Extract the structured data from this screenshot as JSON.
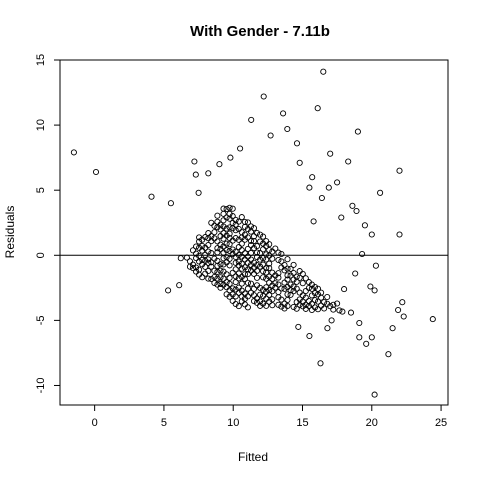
{
  "chart_data": {
    "type": "scatter",
    "title": "With Gender - 7.11b",
    "xlabel": "Fitted",
    "ylabel": "Residuals",
    "xlim": [
      -2.5,
      25.5
    ],
    "ylim": [
      -11.5,
      15.0
    ],
    "x_ticks": [
      0,
      5,
      10,
      15,
      20,
      25
    ],
    "y_ticks": [
      -10,
      -5,
      0,
      5,
      10,
      15
    ],
    "x_tick_labels": [
      "0",
      "5",
      "10",
      "15",
      "20",
      "25"
    ],
    "y_tick_labels": [
      "-10",
      "-5",
      "0",
      "5",
      "10",
      "15"
    ],
    "reference_line": {
      "y": 0
    },
    "marker": "open-circle",
    "grid": false,
    "legend": "none",
    "cluster": {
      "description": "dense band of points along diagonal stripes",
      "x_range": [
        6.0,
        19.5
      ],
      "y_range": [
        -4.5,
        8.5
      ]
    },
    "outliers": [
      {
        "x": -1.5,
        "y": 7.9
      },
      {
        "x": 0.1,
        "y": 6.4
      },
      {
        "x": 4.1,
        "y": 4.5
      },
      {
        "x": 5.5,
        "y": 4.0
      },
      {
        "x": 5.3,
        "y": -2.7
      },
      {
        "x": 6.1,
        "y": -2.3
      },
      {
        "x": 7.2,
        "y": 7.2
      },
      {
        "x": 7.3,
        "y": 6.2
      },
      {
        "x": 9.0,
        "y": 7.0
      },
      {
        "x": 11.3,
        "y": 10.4
      },
      {
        "x": 12.2,
        "y": 12.2
      },
      {
        "x": 13.6,
        "y": 10.9
      },
      {
        "x": 16.1,
        "y": 11.3
      },
      {
        "x": 16.5,
        "y": 14.1
      },
      {
        "x": 16.3,
        "y": -8.3
      },
      {
        "x": 17.0,
        "y": 7.8
      },
      {
        "x": 17.5,
        "y": 5.6
      },
      {
        "x": 18.3,
        "y": 7.2
      },
      {
        "x": 19.0,
        "y": 9.5
      },
      {
        "x": 18.6,
        "y": 3.8
      },
      {
        "x": 18.9,
        "y": 3.4
      },
      {
        "x": 19.5,
        "y": 2.3
      },
      {
        "x": 20.0,
        "y": 1.6
      },
      {
        "x": 20.6,
        "y": 4.8
      },
      {
        "x": 22.0,
        "y": 6.5
      },
      {
        "x": 22.0,
        "y": 1.6
      },
      {
        "x": 19.3,
        "y": 0.1
      },
      {
        "x": 20.3,
        "y": -0.8
      },
      {
        "x": 19.9,
        "y": -2.4
      },
      {
        "x": 20.2,
        "y": -2.7
      },
      {
        "x": 19.1,
        "y": -5.2
      },
      {
        "x": 19.1,
        "y": -6.3
      },
      {
        "x": 19.6,
        "y": -6.8
      },
      {
        "x": 20.0,
        "y": -6.3
      },
      {
        "x": 20.2,
        "y": -10.7
      },
      {
        "x": 21.2,
        "y": -7.6
      },
      {
        "x": 21.5,
        "y": -5.6
      },
      {
        "x": 21.9,
        "y": -4.2
      },
      {
        "x": 22.2,
        "y": -3.6
      },
      {
        "x": 22.3,
        "y": -4.7
      },
      {
        "x": 24.4,
        "y": -4.9
      },
      {
        "x": 18.5,
        "y": -4.4
      },
      {
        "x": 17.5,
        "y": -3.7
      },
      {
        "x": 17.1,
        "y": -5.0
      },
      {
        "x": 18.8,
        "y": -1.4
      },
      {
        "x": 18.0,
        "y": -2.6
      },
      {
        "x": 17.8,
        "y": 2.9
      },
      {
        "x": 16.9,
        "y": 5.2
      },
      {
        "x": 16.4,
        "y": 4.4
      },
      {
        "x": 15.7,
        "y": 6.0
      },
      {
        "x": 14.6,
        "y": 8.6
      },
      {
        "x": 15.8,
        "y": 2.6
      },
      {
        "x": 15.5,
        "y": 5.2
      },
      {
        "x": 16.8,
        "y": -5.6
      },
      {
        "x": 15.5,
        "y": -6.2
      },
      {
        "x": 14.7,
        "y": -5.5
      },
      {
        "x": 7.5,
        "y": 4.8
      },
      {
        "x": 8.2,
        "y": 6.3
      },
      {
        "x": 9.8,
        "y": 7.5
      },
      {
        "x": 10.5,
        "y": 8.2
      },
      {
        "x": 12.7,
        "y": 9.2
      },
      {
        "x": 13.9,
        "y": 9.7
      },
      {
        "x": 14.8,
        "y": 7.1
      }
    ]
  }
}
